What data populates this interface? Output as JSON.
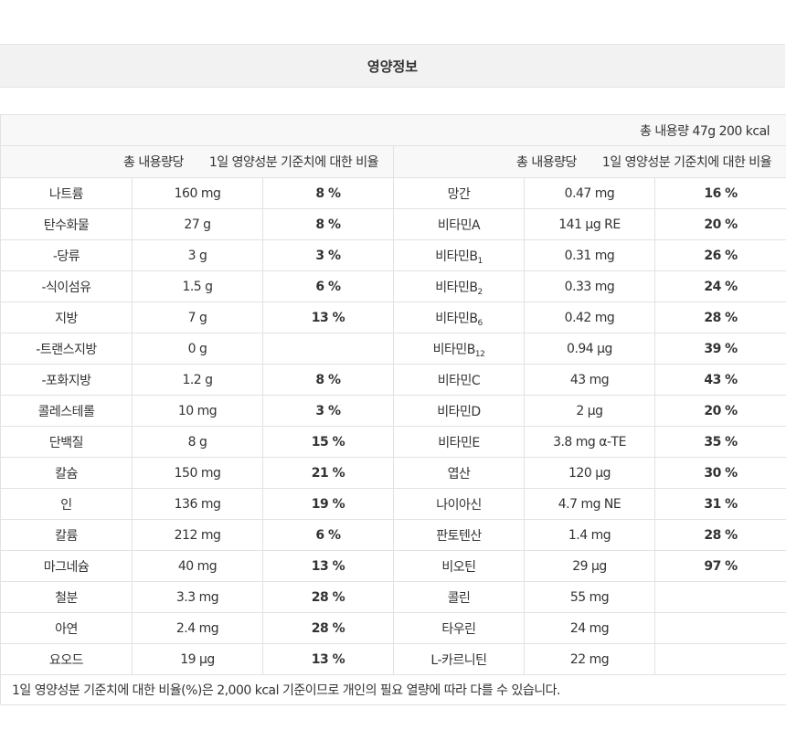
{
  "title": "영양정보",
  "total": "총 내용량 47g  200 kcal",
  "header": {
    "per_total": "총 내용량당",
    "daily_ratio": "1일 영양성분 기준치에 대한 비율"
  },
  "left": [
    {
      "name": "나트륨",
      "amount": "160 mg",
      "pct": "8 %"
    },
    {
      "name": "탄수화물",
      "amount": "27 g",
      "pct": "8 %"
    },
    {
      "name": "-당류",
      "amount": "3 g",
      "pct": "3 %"
    },
    {
      "name": "-식이섬유",
      "amount": "1.5 g",
      "pct": "6 %"
    },
    {
      "name": "지방",
      "amount": "7 g",
      "pct": "13 %"
    },
    {
      "name": "-트랜스지방",
      "amount": "0 g",
      "pct": ""
    },
    {
      "name": "-포화지방",
      "amount": "1.2 g",
      "pct": "8 %"
    },
    {
      "name": "콜레스테롤",
      "amount": "10 mg",
      "pct": "3 %"
    },
    {
      "name": "단백질",
      "amount": "8 g",
      "pct": "15 %"
    },
    {
      "name": "칼슘",
      "amount": "150 mg",
      "pct": "21 %"
    },
    {
      "name": "인",
      "amount": "136 mg",
      "pct": "19 %"
    },
    {
      "name": "칼륨",
      "amount": "212 mg",
      "pct": "6 %"
    },
    {
      "name": "마그네슘",
      "amount": "40 mg",
      "pct": "13 %"
    },
    {
      "name": "철분",
      "amount": "3.3 mg",
      "pct": "28 %"
    },
    {
      "name": "아연",
      "amount": "2.4 mg",
      "pct": "28 %"
    },
    {
      "name": "요오드",
      "amount": "19 μg",
      "pct": "13 %"
    }
  ],
  "right": [
    {
      "name": "망간",
      "sub": "",
      "amount": "0.47 mg",
      "pct": "16 %"
    },
    {
      "name": "비타민A",
      "sub": "",
      "amount": "141 μg RE",
      "pct": "20 %"
    },
    {
      "name": "비타민B",
      "sub": "1",
      "amount": "0.31 mg",
      "pct": "26 %"
    },
    {
      "name": "비타민B",
      "sub": "2",
      "amount": "0.33 mg",
      "pct": "24 %"
    },
    {
      "name": "비타민B",
      "sub": "6",
      "amount": "0.42 mg",
      "pct": "28 %"
    },
    {
      "name": "비타민B",
      "sub": "12",
      "amount": "0.94 μg",
      "pct": "39 %"
    },
    {
      "name": "비타민C",
      "sub": "",
      "amount": "43 mg",
      "pct": "43 %"
    },
    {
      "name": "비타민D",
      "sub": "",
      "amount": "2 μg",
      "pct": "20 %"
    },
    {
      "name": "비타민E",
      "sub": "",
      "amount": "3.8 mg α-TE",
      "pct": "35 %"
    },
    {
      "name": "엽산",
      "sub": "",
      "amount": "120 μg",
      "pct": "30 %"
    },
    {
      "name": "나이아신",
      "sub": "",
      "amount": "4.7 mg NE",
      "pct": "31 %"
    },
    {
      "name": "판토텐산",
      "sub": "",
      "amount": "1.4 mg",
      "pct": "28 %"
    },
    {
      "name": "비오틴",
      "sub": "",
      "amount": "29 μg",
      "pct": "97 %"
    },
    {
      "name": "콜린",
      "sub": "",
      "amount": "55 mg",
      "pct": ""
    },
    {
      "name": "타우린",
      "sub": "",
      "amount": "24 mg",
      "pct": ""
    },
    {
      "name": "L-카르니틴",
      "sub": "",
      "amount": "22 mg",
      "pct": ""
    }
  ],
  "footnote": "1일 영양성분 기준치에 대한 비율(%)은 2,000 kcal 기준이므로 개인의 필요 열량에 따라 다를 수 있습니다."
}
